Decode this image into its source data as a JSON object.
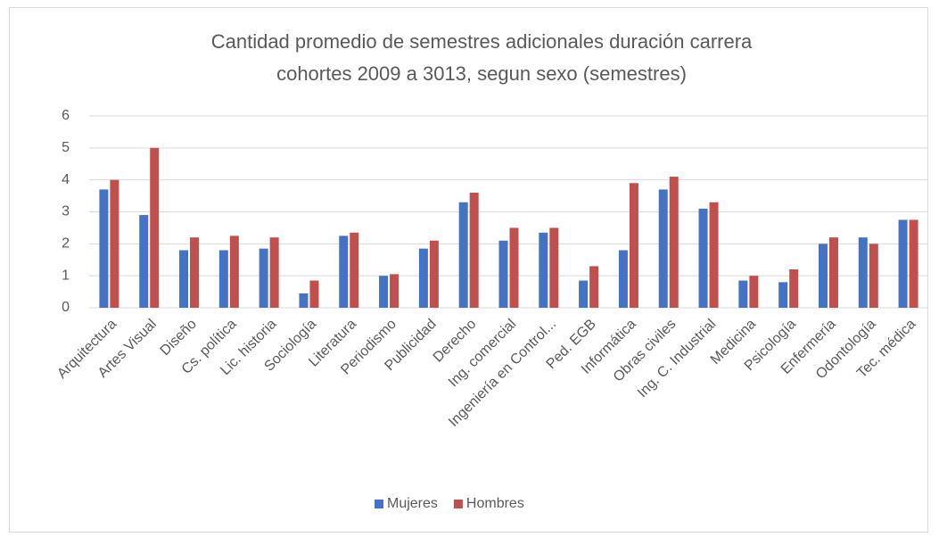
{
  "chart_data": {
    "type": "bar",
    "title": [
      "Cantidad promedio de semestres adicionales duración carrera",
      "cohortes 2009  a 3013,  segun sexo (semestres)"
    ],
    "categories": [
      "Arquitectura",
      "Artes Visual",
      "Diseño",
      "Cs.  política",
      "Lic. historia",
      "Sociología",
      "Literatura",
      "Periodismo",
      "Publicidad",
      "Derecho",
      "Ing. comercial",
      "Ingeniería en Control...",
      "Ped. EGB",
      "Informática",
      "Obras civiles",
      "Ing. C. Industrial",
      "Medicina",
      "Psicología",
      "Enfermería",
      "Odontología",
      "Tec. médica"
    ],
    "series": [
      {
        "name": "Mujeres",
        "color": "#4472c4",
        "values": [
          3.7,
          2.9,
          1.8,
          1.8,
          1.85,
          0.45,
          2.25,
          1.0,
          1.85,
          3.3,
          2.1,
          2.35,
          0.85,
          1.8,
          3.7,
          3.1,
          0.85,
          0.8,
          2.0,
          2.2,
          2.75
        ]
      },
      {
        "name": "Hombres",
        "color": "#c0504d",
        "values": [
          4.0,
          5.0,
          2.2,
          2.25,
          2.2,
          0.85,
          2.35,
          1.05,
          2.1,
          3.6,
          2.5,
          2.5,
          1.3,
          3.9,
          4.1,
          3.3,
          1.0,
          1.2,
          2.2,
          2.0,
          2.75
        ]
      }
    ],
    "ylim": [
      0,
      6
    ],
    "yticks": [
      0,
      1,
      2,
      3,
      4,
      5,
      6
    ],
    "grid": true,
    "legend": "bottom"
  }
}
